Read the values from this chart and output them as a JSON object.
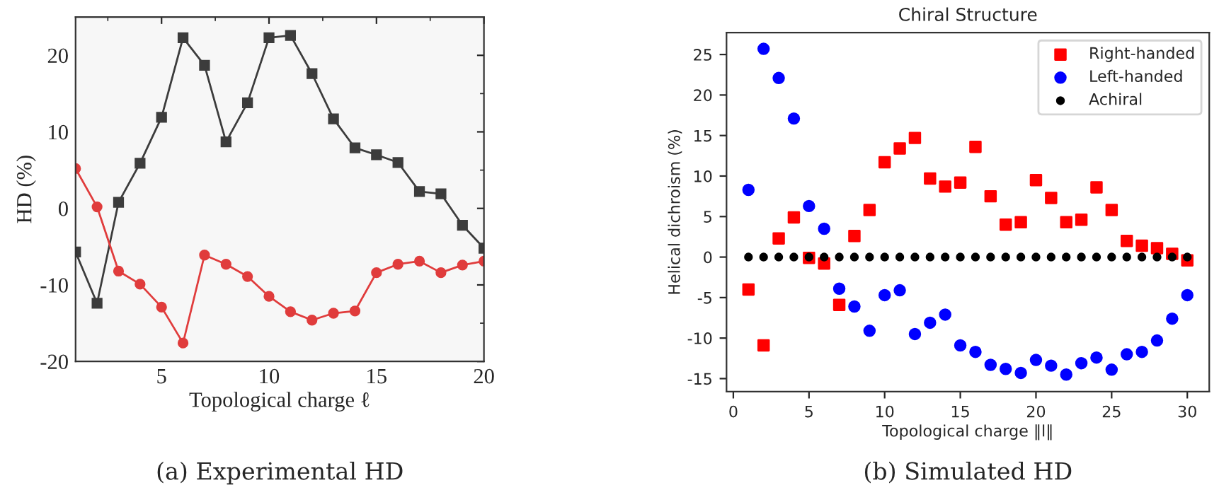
{
  "chart_data": [
    {
      "type": "line",
      "xlabel": "Topological charge ℓ",
      "ylabel": "HD (%)",
      "annotations": [
        "(a) Experimental HD"
      ],
      "x": [
        1,
        2,
        3,
        4,
        5,
        6,
        7,
        8,
        9,
        10,
        11,
        12,
        13,
        14,
        15,
        16,
        17,
        18,
        19,
        20
      ],
      "xlim": [
        1,
        20
      ],
      "xticks": [
        5,
        10,
        15,
        20
      ],
      "ylim": [
        -20,
        25
      ],
      "yticks": [
        -20,
        -10,
        0,
        10,
        20
      ],
      "grid": false,
      "legend": false,
      "line_style": "solid",
      "series": [
        {
          "color": "#3c3c3c",
          "marker": "square",
          "values": [
            -5.7,
            -12.4,
            0.8,
            5.9,
            11.9,
            22.3,
            18.7,
            8.7,
            13.8,
            22.3,
            22.6,
            17.6,
            11.7,
            7.9,
            7.0,
            6.0,
            2.2,
            1.9,
            -2.2,
            -5.2
          ]
        },
        {
          "color": "#e03c3c",
          "marker": "circle",
          "values": [
            5.2,
            0.2,
            -8.2,
            -9.9,
            -12.9,
            -17.6,
            -6.1,
            -7.3,
            -8.9,
            -11.5,
            -13.5,
            -14.6,
            -13.7,
            -13.4,
            -8.4,
            -7.3,
            -6.9,
            -8.4,
            -7.4,
            -6.9
          ]
        }
      ]
    },
    {
      "type": "scatter",
      "title": "Chiral Structure",
      "xlabel": "Topological charge ‖l‖",
      "ylabel": "Helical dichroism (%)",
      "annotations": [
        "(b) Simulated HD"
      ],
      "x": [
        1,
        2,
        3,
        4,
        5,
        6,
        7,
        8,
        9,
        10,
        11,
        12,
        13,
        14,
        15,
        16,
        17,
        18,
        19,
        20,
        21,
        22,
        23,
        24,
        25,
        26,
        27,
        28,
        29,
        30
      ],
      "xlim": [
        -0.45,
        31.45
      ],
      "xticks": [
        0,
        5,
        10,
        15,
        20,
        25,
        30
      ],
      "ylim": [
        -16.6,
        27.7
      ],
      "yticks": [
        -15,
        -10,
        -5,
        0,
        5,
        10,
        15,
        20,
        25
      ],
      "grid": false,
      "legend": "top right",
      "series": [
        {
          "name": "Right-handed",
          "color": "#ff0000",
          "marker": "square",
          "values": [
            -4.0,
            -10.9,
            2.3,
            4.9,
            -0.1,
            -0.8,
            -5.9,
            2.6,
            5.8,
            11.7,
            13.4,
            14.7,
            9.7,
            8.7,
            9.2,
            13.6,
            7.5,
            4.0,
            4.3,
            9.5,
            7.3,
            4.3,
            4.6,
            8.6,
            5.8,
            2.0,
            1.4,
            1.1,
            0.4,
            -0.4
          ]
        },
        {
          "name": "Left-handed",
          "color": "#0000ff",
          "marker": "circle",
          "values": [
            8.3,
            25.7,
            22.1,
            17.1,
            6.3,
            3.5,
            -3.9,
            -6.1,
            -9.1,
            -4.7,
            -4.1,
            -9.5,
            -8.1,
            -7.1,
            -10.9,
            -11.7,
            -13.3,
            -13.8,
            -14.3,
            -12.7,
            -13.4,
            -14.5,
            -13.1,
            -12.4,
            -13.9,
            -12.0,
            -11.7,
            -10.3,
            -7.6,
            -4.7
          ]
        },
        {
          "name": "Achiral",
          "color": "#000000",
          "marker": "circle",
          "values": [
            0,
            0,
            0,
            0,
            0,
            0,
            0,
            0,
            0,
            0,
            0,
            0,
            0,
            0,
            0,
            0,
            0,
            0,
            0,
            0,
            0,
            0,
            0,
            0,
            0,
            0,
            0,
            0,
            0,
            0
          ]
        }
      ]
    }
  ]
}
